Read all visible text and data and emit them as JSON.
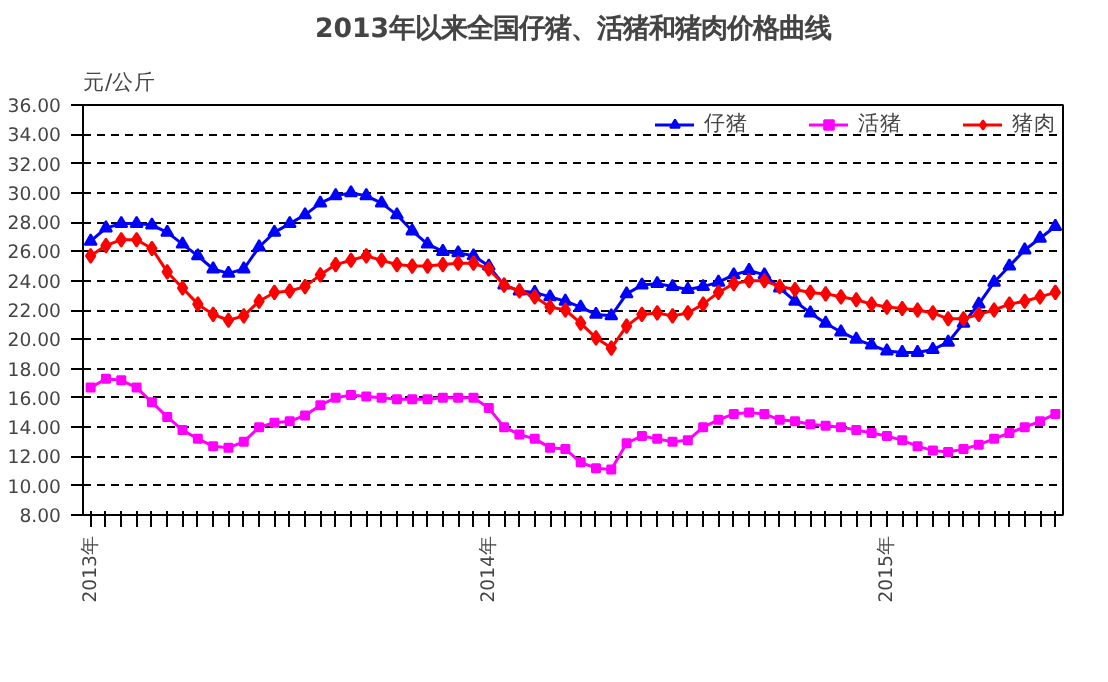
{
  "chart_data": {
    "type": "line",
    "title": "2013年以来全国仔猪、活猪和猪肉价格曲线",
    "ylabel": "元/公斤",
    "categories": [
      "2013年",
      null,
      null,
      null,
      null,
      null,
      null,
      null,
      null,
      null,
      null,
      null,
      null,
      null,
      null,
      null,
      null,
      null,
      null,
      null,
      null,
      null,
      null,
      null,
      null,
      null,
      "2014年",
      null,
      null,
      null,
      null,
      null,
      null,
      null,
      null,
      null,
      null,
      null,
      null,
      null,
      null,
      null,
      null,
      null,
      null,
      null,
      null,
      null,
      null,
      null,
      null,
      null,
      "2015年",
      null,
      null,
      null,
      null,
      null,
      null,
      null,
      null,
      null,
      null,
      null
    ],
    "series": [
      {
        "name": "仔猪",
        "color": "#0000ff",
        "marker": "triangle",
        "values": [
          26.7,
          27.6,
          27.9,
          27.9,
          27.8,
          27.3,
          26.5,
          25.7,
          24.8,
          24.5,
          24.8,
          26.3,
          27.3,
          27.9,
          28.5,
          29.3,
          29.8,
          30.0,
          29.8,
          29.3,
          28.5,
          27.4,
          26.5,
          26.0,
          25.9,
          25.7,
          25.0,
          23.7,
          23.3,
          23.2,
          22.9,
          22.6,
          22.2,
          21.7,
          21.6,
          23.1,
          23.7,
          23.8,
          23.6,
          23.4,
          23.6,
          23.9,
          24.4,
          24.7,
          24.4,
          23.5,
          22.6,
          21.8,
          21.1,
          20.5,
          20.0,
          19.6,
          19.2,
          19.1,
          19.1,
          19.3,
          19.8,
          21.1,
          22.4,
          23.9,
          25.0,
          26.1,
          26.9,
          27.7
        ]
      },
      {
        "name": "活猪",
        "color": "#ff00ff",
        "marker": "square",
        "values": [
          16.7,
          17.3,
          17.2,
          16.7,
          15.7,
          14.7,
          13.8,
          13.2,
          12.7,
          12.6,
          13.0,
          14.0,
          14.3,
          14.4,
          14.8,
          15.5,
          16.0,
          16.2,
          16.1,
          16.0,
          15.9,
          15.9,
          15.9,
          16.0,
          16.0,
          16.0,
          15.3,
          14.0,
          13.5,
          13.2,
          12.6,
          12.5,
          11.6,
          11.2,
          11.1,
          12.9,
          13.4,
          13.2,
          13.0,
          13.1,
          14.0,
          14.5,
          14.9,
          15.0,
          14.9,
          14.5,
          14.4,
          14.2,
          14.1,
          14.0,
          13.8,
          13.6,
          13.4,
          13.1,
          12.7,
          12.4,
          12.3,
          12.5,
          12.8,
          13.2,
          13.6,
          14.0,
          14.4,
          14.9
        ]
      },
      {
        "name": "猪肉",
        "color": "#ff0000",
        "marker": "diamond",
        "values": [
          25.7,
          26.4,
          26.8,
          26.8,
          26.2,
          24.6,
          23.5,
          22.4,
          21.7,
          21.3,
          21.6,
          22.6,
          23.2,
          23.3,
          23.6,
          24.4,
          25.1,
          25.4,
          25.7,
          25.4,
          25.1,
          25.0,
          25.0,
          25.1,
          25.2,
          25.2,
          24.8,
          23.7,
          23.3,
          22.9,
          22.2,
          22.0,
          21.1,
          20.1,
          19.4,
          20.9,
          21.7,
          21.8,
          21.6,
          21.8,
          22.4,
          23.2,
          23.8,
          24.0,
          24.0,
          23.6,
          23.4,
          23.2,
          23.1,
          22.9,
          22.7,
          22.4,
          22.2,
          22.1,
          22.0,
          21.8,
          21.4,
          21.4,
          21.7,
          22.0,
          22.4,
          22.6,
          22.9,
          23.2
        ]
      }
    ],
    "ylim": [
      8,
      36
    ],
    "yticks": [
      {
        "value": 8,
        "label": "8.00"
      },
      {
        "value": 10,
        "label": "10.00"
      },
      {
        "value": 12,
        "label": "12.00"
      },
      {
        "value": 14,
        "label": "14.00"
      },
      {
        "value": 16,
        "label": "16.00"
      },
      {
        "value": 18,
        "label": "18.00"
      },
      {
        "value": 20,
        "label": "20.00"
      },
      {
        "value": 22,
        "label": "22.00"
      },
      {
        "value": 24,
        "label": "24.00"
      },
      {
        "value": 26,
        "label": "26.00"
      },
      {
        "value": 28,
        "label": "28.00"
      },
      {
        "value": 30,
        "label": "30.00"
      },
      {
        "value": 32,
        "label": "32.00"
      },
      {
        "value": 34,
        "label": "34.00"
      },
      {
        "value": 36,
        "label": "36.00"
      }
    ],
    "grid": "y",
    "legend": "top right",
    "line_style": "solid"
  }
}
